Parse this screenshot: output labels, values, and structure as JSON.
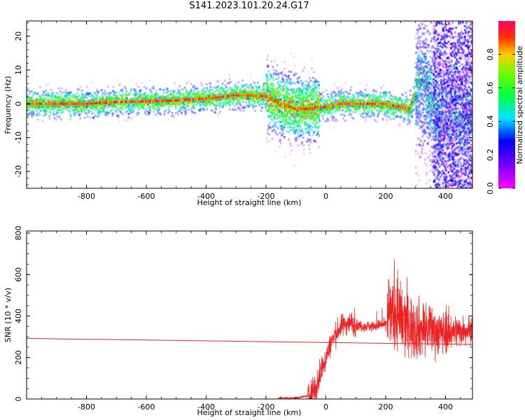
{
  "title": "S141.2023.101.20.24.G17",
  "chart_data": [
    {
      "type": "heatmap",
      "xlabel": "Height of straight line (km)",
      "ylabel": "Frequency (Hz)",
      "xlim": [
        -1000,
        490
      ],
      "ylim": [
        -25,
        24.5
      ],
      "xticks": [
        -800,
        -600,
        -400,
        -200,
        0,
        200,
        400
      ],
      "yticks": [
        -20,
        -10,
        0,
        10,
        20
      ],
      "colorbar": {
        "label": "Normalized spectral amplitude",
        "range": [
          0,
          1
        ],
        "ticks": [
          "0.0",
          "0.2",
          "0.4",
          "0.6",
          "0.8"
        ],
        "colormap": "gist_rainbow_r"
      },
      "ridge": {
        "x": [
          -1000,
          -900,
          -800,
          -700,
          -600,
          -500,
          -400,
          -300,
          -250,
          -200,
          -150,
          -100,
          -60,
          -30,
          0,
          50,
          100,
          150,
          200,
          250,
          280,
          300,
          320,
          340,
          360,
          380
        ],
        "y": [
          0,
          0,
          0,
          0.5,
          0.7,
          1.0,
          1.5,
          2.5,
          2.5,
          2.2,
          0,
          -1.5,
          -1.5,
          -1,
          -1,
          0,
          0,
          0,
          0,
          -1,
          -1.5,
          3,
          7,
          4,
          0,
          -4
        ]
      }
    },
    {
      "type": "line",
      "xlabel": "Height of straight line (km)",
      "ylabel": "SNR (10 * v/v)",
      "xlim": [
        -1000,
        490
      ],
      "ylim": [
        0,
        810
      ],
      "xticks": [
        -800,
        -600,
        -400,
        -200,
        0,
        200,
        400
      ],
      "yticks": [
        0,
        200,
        400,
        600,
        800
      ],
      "color": "#ee2222",
      "snr_profile": {
        "x": [
          -160,
          -100,
          -60,
          -30,
          -20,
          0,
          20,
          40,
          60,
          80,
          100,
          150,
          200,
          210,
          230,
          260,
          300,
          350,
          400,
          450,
          490
        ],
        "y": [
          5,
          5,
          15,
          60,
          120,
          200,
          280,
          330,
          360,
          370,
          355,
          350,
          360,
          420,
          400,
          370,
          340,
          330,
          320,
          330,
          335
        ]
      },
      "chord": {
        "x": [
          -1000,
          490
        ],
        "y": [
          292,
          263
        ]
      }
    }
  ]
}
